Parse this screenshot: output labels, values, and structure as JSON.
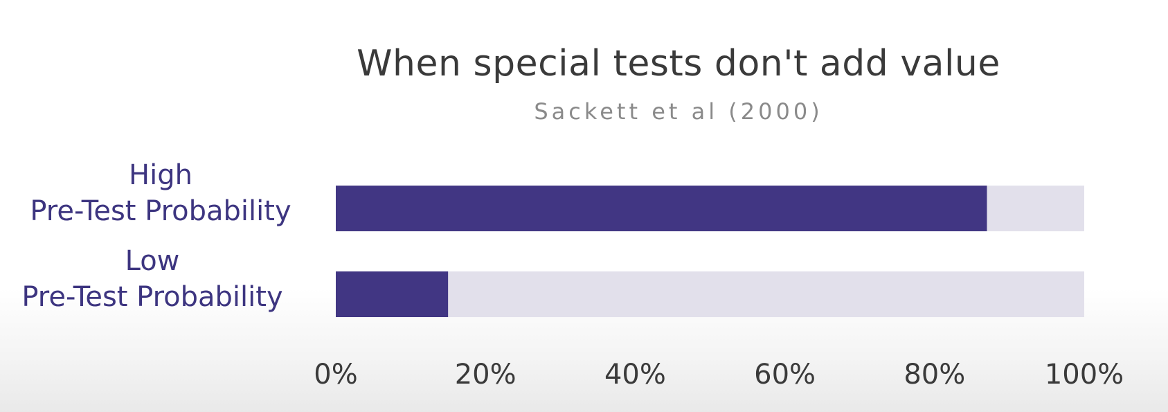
{
  "chart_data": {
    "type": "bar",
    "orientation": "horizontal",
    "stacked_remainder": true,
    "title": "When special tests don't add value",
    "subtitle": "Sackett et al (2000)",
    "categories": [
      [
        "High",
        "Pre-Test Probability"
      ],
      [
        "Low",
        "Pre-Test Probability"
      ]
    ],
    "values": [
      87,
      15
    ],
    "xlim": [
      0,
      100
    ],
    "x_ticks": [
      "0%",
      "20%",
      "40%",
      "60%",
      "80%",
      "100%"
    ],
    "grid": false,
    "colors": {
      "bar": "#413683",
      "remainder": "#e2e0eb",
      "category_label": "#3d3580",
      "title": "#3a3a3a",
      "subtitle": "#8a8a8a"
    }
  }
}
